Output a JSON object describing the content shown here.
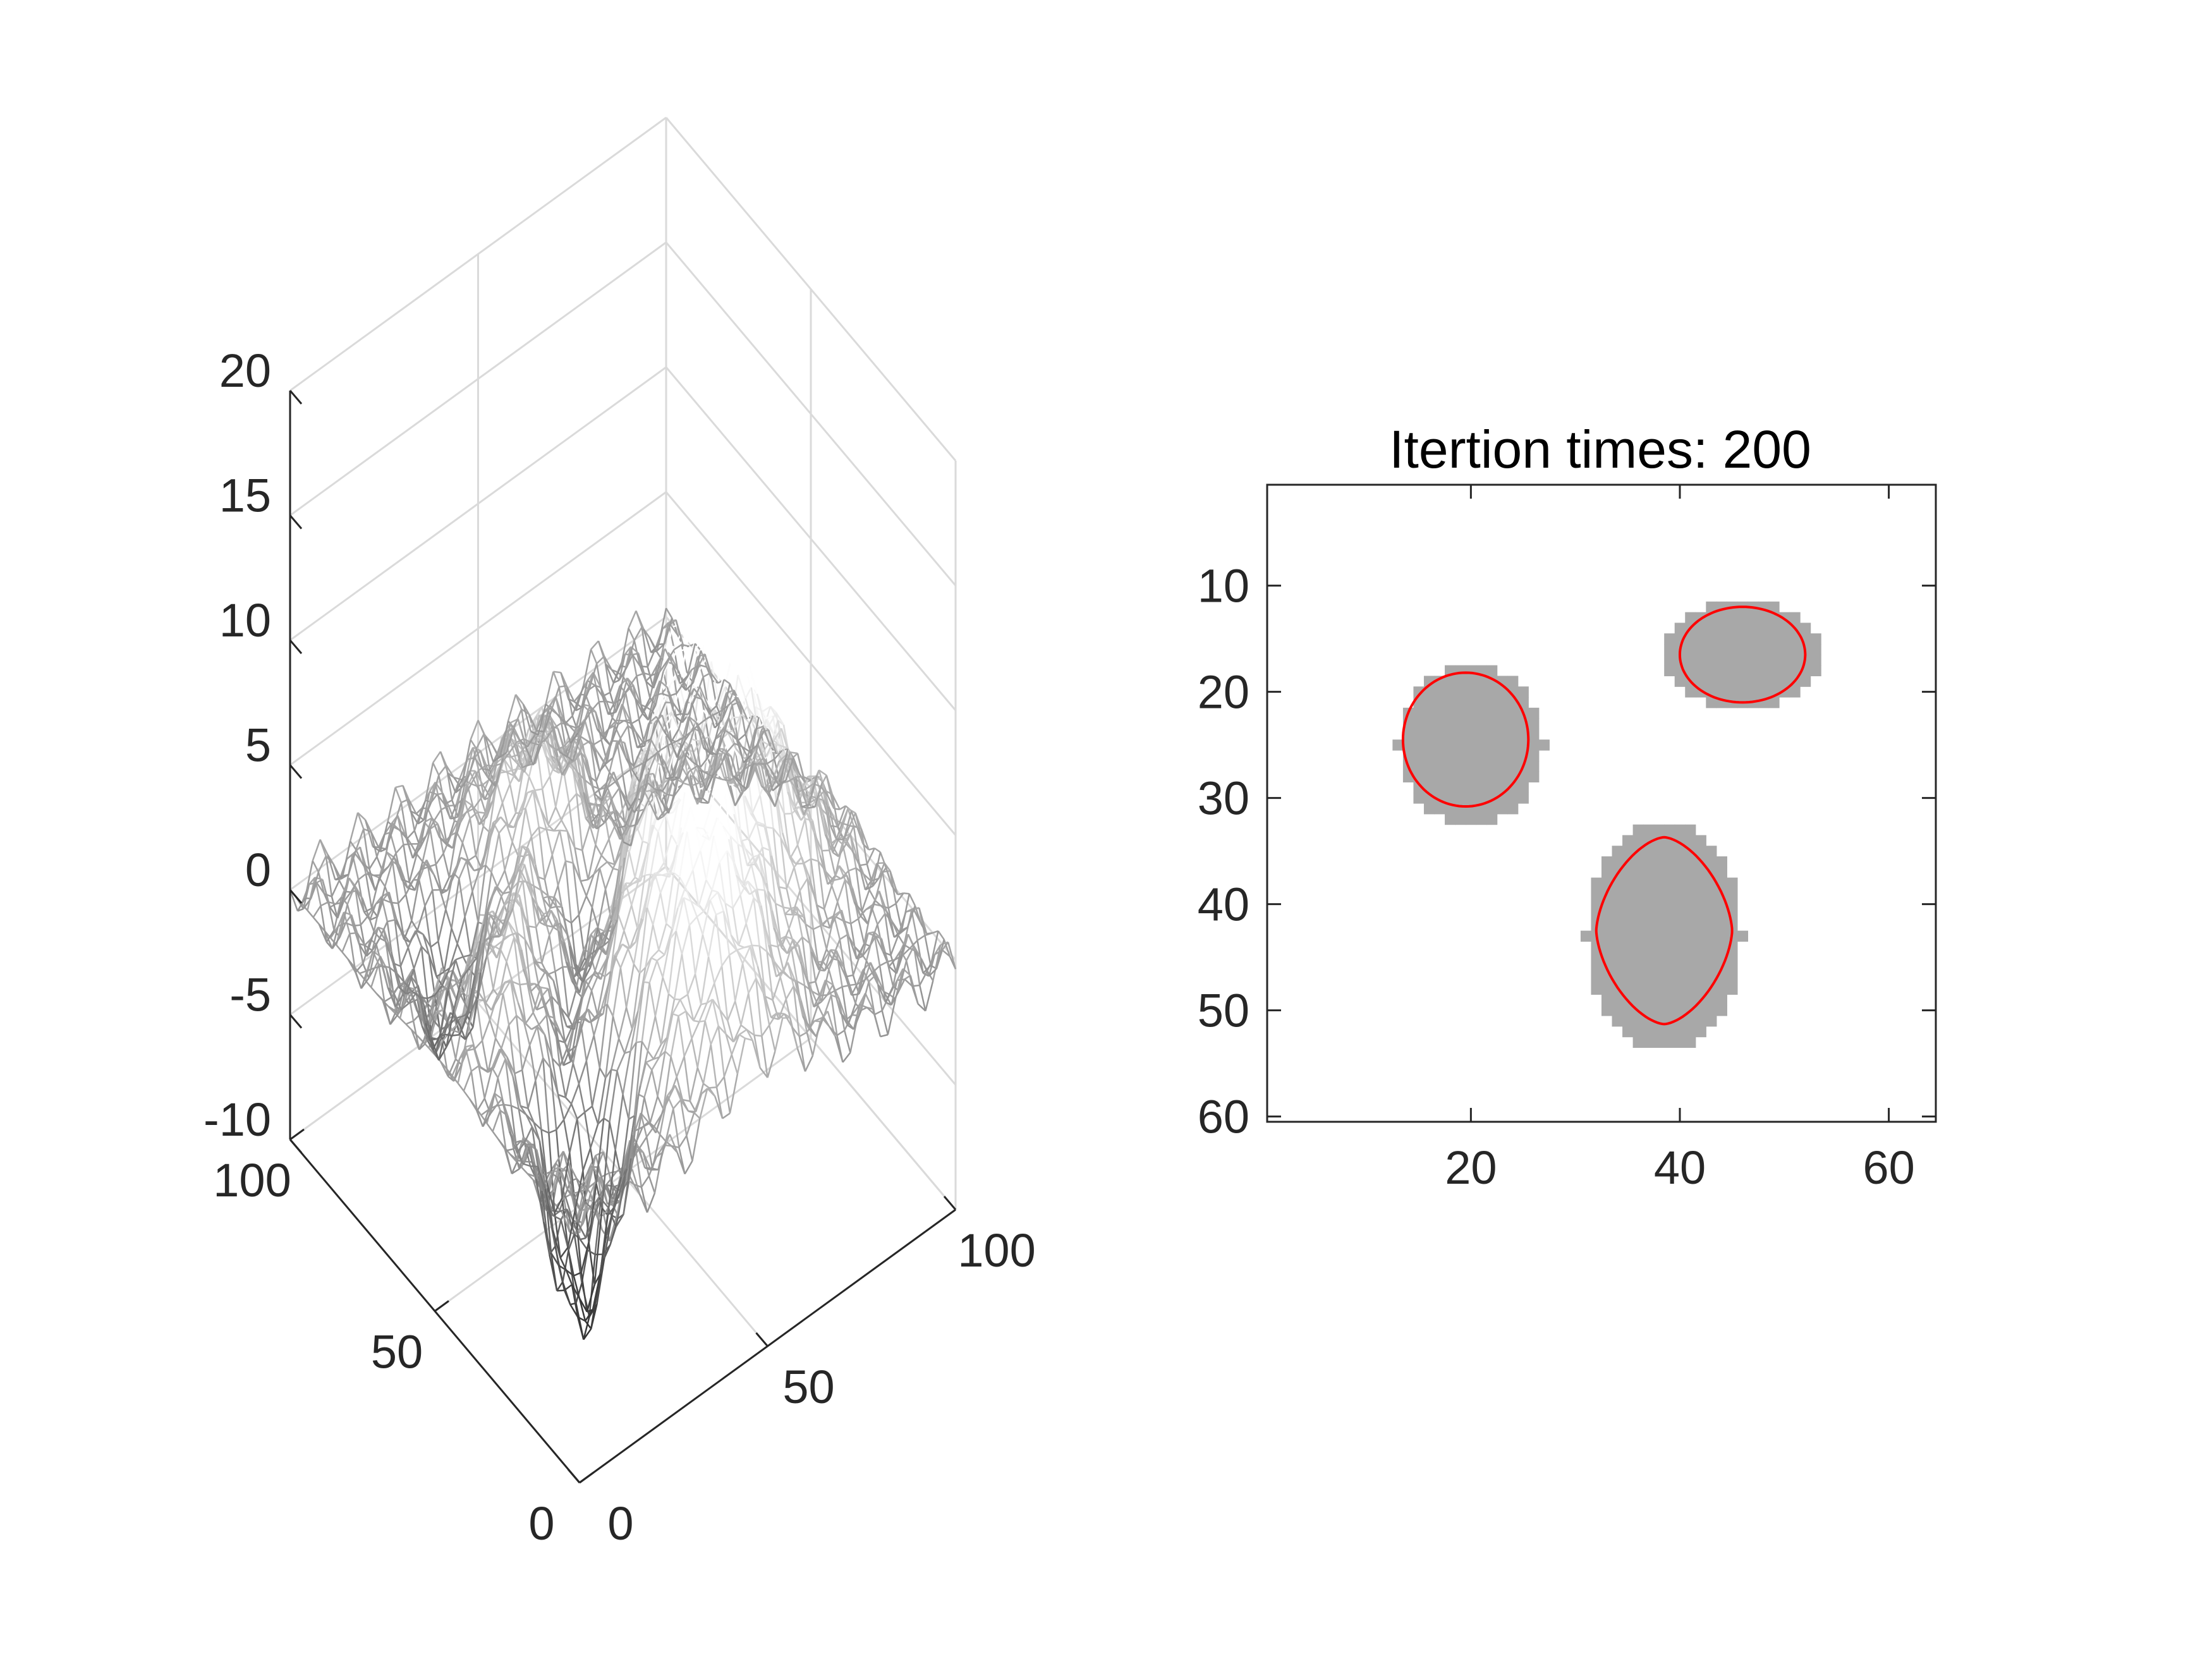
{
  "figure": {
    "background": "#ffffff",
    "text_color": "#262626"
  },
  "chart_data": [
    {
      "type": "surface",
      "colormap": "gray (white high, black low)",
      "style": "wireframe mesh, no fill shading",
      "title": "",
      "xlabel": "",
      "ylabel": "",
      "zlabel": "",
      "xlim": [
        0,
        100
      ],
      "ylim": [
        0,
        100
      ],
      "zlim": [
        -10,
        20
      ],
      "x_ticks": [
        "0",
        "50",
        "100"
      ],
      "y_ticks": [
        "0",
        "50",
        "100"
      ],
      "z_ticks": [
        "-10",
        "-5",
        "0",
        "5",
        "10",
        "15",
        "20"
      ],
      "grid": true,
      "peaks": [
        {
          "x": 62,
          "y": 40,
          "z": 11.5
        },
        {
          "x": 48,
          "y": 18,
          "z": 7.5
        },
        {
          "x": 28,
          "y": 48,
          "z": 7
        },
        {
          "x": 50,
          "y": 72,
          "z": 5
        },
        {
          "x": 80,
          "y": 38,
          "z": 3.5
        }
      ],
      "troughs": [
        {
          "x": 20,
          "y": 25,
          "z": -10
        },
        {
          "x": 30,
          "y": 45,
          "z": -8
        },
        {
          "x": 45,
          "y": 55,
          "z": -6
        },
        {
          "x": 20,
          "y": 70,
          "z": -5
        },
        {
          "x": 60,
          "y": 70,
          "z": -3
        }
      ]
    },
    {
      "type": "image",
      "title": "Itertion times: 200",
      "xlabel": "",
      "ylabel": "",
      "xlim": [
        0.5,
        64.5
      ],
      "ylim": [
        60.5,
        0.5
      ],
      "x_ticks": [
        "20",
        "40",
        "60"
      ],
      "y_ticks": [
        "10",
        "20",
        "30",
        "40",
        "50",
        "60"
      ],
      "grid": false,
      "background_color": "#ffffff",
      "region_color": "#a8a8a8",
      "contour_color": "#ff0000",
      "regions": [
        {
          "cx": 20,
          "cy": 25,
          "rx": 7,
          "ry": 7.5
        },
        {
          "cx": 46,
          "cy": 16.5,
          "rx": 8,
          "ry": 5
        },
        {
          "cx": 38.5,
          "cy": 43,
          "rx": 7.5,
          "ry": 11
        }
      ],
      "contours": [
        {
          "cx": 19.5,
          "cy": 24.5,
          "rx": 6,
          "ry": 6.3,
          "shape": "circle"
        },
        {
          "cx": 46,
          "cy": 16.5,
          "rx": 6,
          "ry": 4.5,
          "shape": "ellipse"
        },
        {
          "cx": 38.5,
          "cy": 42.5,
          "rx": 6.5,
          "ry": 8.8,
          "shape": "diamond"
        }
      ]
    }
  ]
}
